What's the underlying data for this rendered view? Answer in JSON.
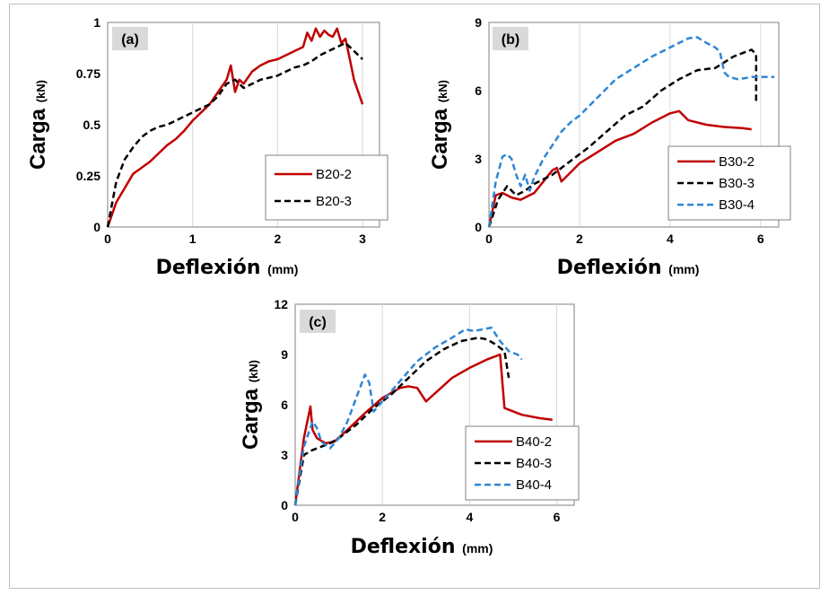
{
  "chart_data": [
    {
      "type": "line",
      "panel_label": "(a)",
      "ylabel": "Carga",
      "ylabel_unit": "(kN)",
      "xlabel": "Deflexión",
      "xlabel_unit": "(mm)",
      "xlim": [
        0,
        3.2
      ],
      "ylim": [
        0,
        1
      ],
      "xticks": [
        0,
        1,
        2,
        3
      ],
      "yticks": [
        0,
        0.25,
        0.5,
        0.75,
        1
      ],
      "ytick_labels": [
        "0",
        "0.25",
        "0.5",
        "0.75",
        "1"
      ],
      "grid": "vertical",
      "legend": "bottom-right",
      "series": [
        {
          "name": "B20-2",
          "color": "#c00000",
          "dash": "solid",
          "x": [
            0,
            0.1,
            0.2,
            0.3,
            0.4,
            0.5,
            0.6,
            0.7,
            0.8,
            0.9,
            1.0,
            1.1,
            1.2,
            1.3,
            1.4,
            1.45,
            1.5,
            1.55,
            1.6,
            1.7,
            1.8,
            1.9,
            2.0,
            2.1,
            2.2,
            2.3,
            2.35,
            2.4,
            2.45,
            2.5,
            2.55,
            2.6,
            2.65,
            2.7,
            2.75,
            2.8,
            2.85,
            2.9,
            3.0
          ],
          "y": [
            0,
            0.12,
            0.19,
            0.26,
            0.29,
            0.32,
            0.36,
            0.4,
            0.43,
            0.47,
            0.52,
            0.56,
            0.6,
            0.66,
            0.72,
            0.79,
            0.66,
            0.72,
            0.7,
            0.76,
            0.79,
            0.81,
            0.82,
            0.84,
            0.86,
            0.88,
            0.95,
            0.91,
            0.97,
            0.93,
            0.96,
            0.94,
            0.93,
            0.97,
            0.9,
            0.92,
            0.82,
            0.72,
            0.6
          ]
        },
        {
          "name": "B20-3",
          "color": "#000000",
          "dash": "dashed",
          "x": [
            0,
            0.1,
            0.2,
            0.3,
            0.4,
            0.5,
            0.6,
            0.7,
            0.8,
            0.9,
            1.0,
            1.1,
            1.2,
            1.3,
            1.4,
            1.5,
            1.6,
            1.7,
            1.8,
            1.9,
            2.0,
            2.1,
            2.2,
            2.3,
            2.4,
            2.5,
            2.6,
            2.7,
            2.8,
            2.9,
            3.0
          ],
          "y": [
            0,
            0.22,
            0.33,
            0.39,
            0.44,
            0.47,
            0.49,
            0.5,
            0.52,
            0.54,
            0.56,
            0.58,
            0.6,
            0.64,
            0.7,
            0.72,
            0.68,
            0.7,
            0.72,
            0.73,
            0.74,
            0.76,
            0.78,
            0.79,
            0.81,
            0.84,
            0.86,
            0.88,
            0.9,
            0.86,
            0.82
          ]
        }
      ]
    },
    {
      "type": "line",
      "panel_label": "(b)",
      "ylabel": "Carga",
      "ylabel_unit": "(kN)",
      "xlabel": "Deflexión",
      "xlabel_unit": "(mm)",
      "xlim": [
        0,
        6.4
      ],
      "ylim": [
        0,
        9
      ],
      "xticks": [
        0,
        2,
        4,
        6
      ],
      "yticks": [
        0,
        3,
        6,
        9
      ],
      "ytick_labels": [
        "0",
        "3",
        "6",
        "9"
      ],
      "grid": "vertical",
      "legend": "bottom-right",
      "series": [
        {
          "name": "B30-2",
          "color": "#c00000",
          "dash": "solid",
          "x": [
            0,
            0.15,
            0.3,
            0.5,
            0.7,
            0.9,
            1.0,
            1.2,
            1.4,
            1.5,
            1.6,
            1.8,
            2.0,
            2.4,
            2.8,
            3.2,
            3.6,
            4.0,
            4.2,
            4.4,
            4.8,
            5.2,
            5.6,
            5.8
          ],
          "y": [
            0,
            1.4,
            1.5,
            1.3,
            1.2,
            1.4,
            1.5,
            2.0,
            2.5,
            2.6,
            2.0,
            2.4,
            2.8,
            3.3,
            3.8,
            4.1,
            4.6,
            5.0,
            5.1,
            4.7,
            4.5,
            4.4,
            4.35,
            4.3
          ]
        },
        {
          "name": "B30-3",
          "color": "#000000",
          "dash": "dashed",
          "x": [
            0,
            0.2,
            0.4,
            0.6,
            0.8,
            1.0,
            1.4,
            1.8,
            2.2,
            2.6,
            3.0,
            3.4,
            3.8,
            4.2,
            4.6,
            5.0,
            5.4,
            5.8,
            5.9,
            5.9
          ],
          "y": [
            0,
            1.2,
            1.8,
            1.4,
            1.6,
            1.9,
            2.3,
            2.9,
            3.5,
            4.2,
            4.9,
            5.3,
            6.0,
            6.5,
            6.9,
            7.0,
            7.5,
            7.8,
            7.6,
            5.4
          ]
        },
        {
          "name": "B30-4",
          "color": "#2e86d4",
          "dash": "dashed",
          "x": [
            0,
            0.15,
            0.3,
            0.4,
            0.5,
            0.6,
            0.7,
            0.8,
            0.9,
            1.0,
            1.2,
            1.4,
            1.6,
            1.8,
            2.0,
            2.4,
            2.8,
            3.2,
            3.6,
            4.0,
            4.4,
            4.6,
            4.8,
            5.0,
            5.1,
            5.2,
            5.3,
            5.5,
            5.8,
            6.0,
            6.3
          ],
          "y": [
            0,
            2.0,
            3.1,
            3.2,
            3.0,
            2.3,
            1.8,
            2.3,
            1.6,
            2.2,
            3.0,
            3.6,
            4.2,
            4.6,
            4.9,
            5.7,
            6.5,
            7.0,
            7.5,
            7.9,
            8.3,
            8.35,
            8.1,
            7.9,
            7.7,
            6.8,
            6.6,
            6.5,
            6.6,
            6.6,
            6.6
          ]
        }
      ]
    },
    {
      "type": "line",
      "panel_label": "(c)",
      "ylabel": "Carga",
      "ylabel_unit": "(kN)",
      "xlabel": "Deflexión",
      "xlabel_unit": "(mm)",
      "xlim": [
        0,
        6.4
      ],
      "ylim": [
        0,
        12
      ],
      "xticks": [
        0,
        2,
        4,
        6
      ],
      "yticks": [
        0,
        3,
        6,
        9,
        12
      ],
      "ytick_labels": [
        "0",
        "3",
        "6",
        "9",
        "12"
      ],
      "grid": "vertical",
      "legend": "bottom-right",
      "series": [
        {
          "name": "B40-2",
          "color": "#c00000",
          "dash": "solid",
          "x": [
            0,
            0.2,
            0.35,
            0.4,
            0.5,
            0.7,
            0.9,
            1.2,
            1.6,
            2.0,
            2.4,
            2.6,
            2.8,
            3.0,
            3.3,
            3.6,
            4.0,
            4.4,
            4.6,
            4.7,
            4.8,
            5.2,
            5.6,
            5.9
          ],
          "y": [
            0,
            4.0,
            5.9,
            4.5,
            4.0,
            3.7,
            3.8,
            4.5,
            5.5,
            6.4,
            7.0,
            7.1,
            7.0,
            6.2,
            6.9,
            7.6,
            8.2,
            8.7,
            8.9,
            9.0,
            5.8,
            5.4,
            5.2,
            5.1
          ]
        },
        {
          "name": "B40-3",
          "color": "#000000",
          "dash": "dashed",
          "x": [
            0,
            0.2,
            0.4,
            0.6,
            0.8,
            1.0,
            1.4,
            1.8,
            2.2,
            2.6,
            3.0,
            3.4,
            3.8,
            4.2,
            4.4,
            4.6,
            4.8,
            4.9
          ],
          "y": [
            0,
            3.0,
            3.3,
            3.5,
            3.7,
            4.0,
            4.8,
            5.8,
            6.6,
            7.6,
            8.6,
            9.3,
            9.8,
            10.0,
            9.9,
            9.6,
            9.2,
            7.6
          ]
        },
        {
          "name": "B40-4",
          "color": "#2e86d4",
          "dash": "dashed",
          "x": [
            0,
            0.2,
            0.4,
            0.5,
            0.6,
            0.8,
            1.0,
            1.2,
            1.4,
            1.6,
            1.7,
            1.8,
            2.0,
            2.4,
            2.8,
            3.2,
            3.6,
            3.9,
            4.1,
            4.3,
            4.5,
            4.7,
            4.9,
            5.1,
            5.2
          ],
          "y": [
            0,
            3.5,
            5.0,
            4.6,
            3.8,
            3.4,
            4.0,
            5.0,
            6.4,
            7.8,
            7.3,
            5.6,
            6.2,
            7.4,
            8.6,
            9.4,
            10.0,
            10.5,
            10.4,
            10.5,
            10.6,
            9.8,
            9.2,
            9.0,
            8.7
          ]
        }
      ]
    }
  ]
}
